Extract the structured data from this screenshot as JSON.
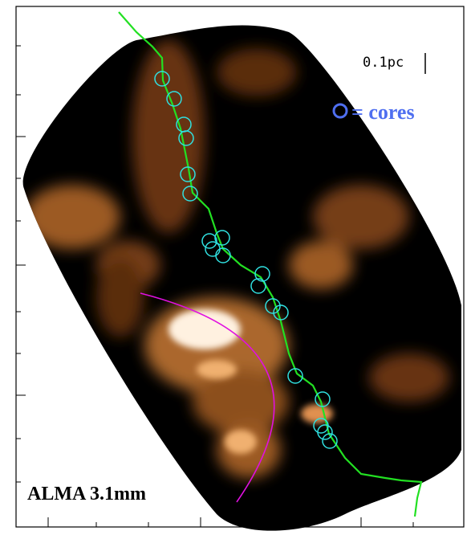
{
  "scale_bar": {
    "label": "0.1pc"
  },
  "legend": {
    "label": "= cores"
  },
  "caption": "ALMA 3.1mm"
}
